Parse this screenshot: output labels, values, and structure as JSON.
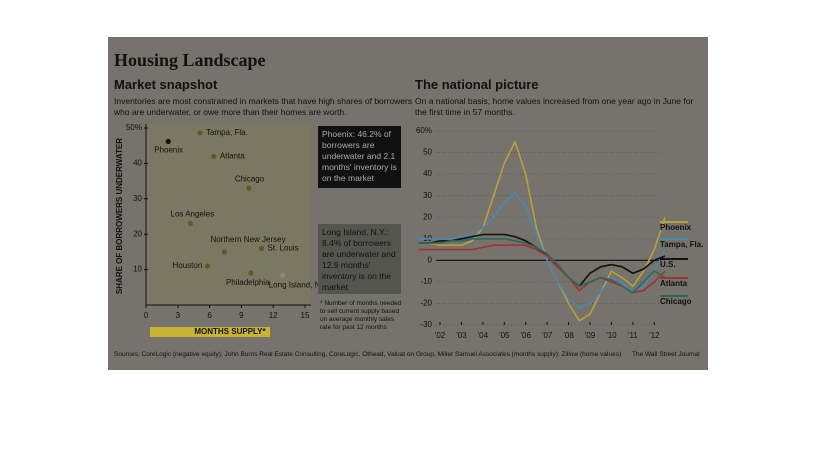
{
  "header": {
    "title": "Housing Landscape"
  },
  "chart_data": [
    {
      "type": "scatter",
      "title": "Market snapshot",
      "subtitle": "Inventories are most constrained in markets that have high shares of borrowers who are underwater, or owe more than their homes are worth.",
      "xlabel": "MONTHS SUPPLY*",
      "ylabel": "SHARE OF BORROWERS UNDERWATER",
      "labels": [
        "Phoenix",
        "Tampa, Fla.",
        "Atlanta",
        "Chicago",
        "Los Angeles",
        "Northern New Jersey",
        "St. Louis",
        "Houston",
        "Philadelphia",
        "Long Island, N.Y."
      ],
      "x": [
        2.1,
        5.1,
        6.4,
        9.7,
        4.2,
        7.4,
        10.9,
        5.8,
        9.9,
        12.9
      ],
      "values": [
        46.2,
        48.6,
        42,
        33,
        23,
        15,
        16,
        11,
        9,
        8.4
      ],
      "color": "#5e5a22",
      "xlim": [
        0,
        15
      ],
      "ylim": [
        0,
        50
      ],
      "xticks": [
        0,
        3,
        6,
        9,
        12,
        15
      ],
      "yticks": [
        {
          "value": 50,
          "label": "50%"
        },
        40,
        30,
        20,
        10
      ],
      "annotations": [
        "Phoenix: 46.2% of borrowers are underwater and 2.1 months' inventory is on the market",
        "Long Island, N.Y.: 8.4% of borrowers are underwater and 12.9 months' inventory is on the market"
      ],
      "note": "* Number of months needed to sell current supply based on average monthly sales rate for past 12 months"
    },
    {
      "type": "line",
      "title": "The national picture",
      "subtitle": "On a national basis, home values increased from one year ago in June for the first time in 57 months.",
      "x": [
        2001,
        2001.5,
        2002,
        2002.5,
        2003,
        2003.5,
        2004,
        2004.5,
        2005,
        2005.5,
        2006,
        2006.5,
        2007,
        2007.5,
        2008,
        2008.5,
        2009,
        2009.5,
        2010,
        2010.5,
        2011,
        2011.5,
        2012,
        2012.5
      ],
      "series": [
        {
          "name": "Phoenix",
          "color": "#b9a03c",
          "values": [
            8,
            8,
            7,
            7,
            7,
            9,
            15,
            30,
            45,
            55,
            40,
            15,
            0,
            -10,
            -20,
            -28,
            -25,
            -15,
            -5,
            -8,
            -12,
            -5,
            5,
            20
          ]
        },
        {
          "name": "Tampa, Fla.",
          "color": "#4d86b0",
          "values": [
            10,
            10,
            10,
            10,
            11,
            12,
            15,
            20,
            27,
            31,
            25,
            12,
            0,
            -10,
            -18,
            -22,
            -20,
            -15,
            -8,
            -10,
            -15,
            -12,
            -5,
            5
          ]
        },
        {
          "name": "U.S.",
          "color": "#111111",
          "values": [
            8,
            8,
            9,
            9,
            10,
            11,
            12,
            12,
            12,
            11,
            9,
            6,
            2,
            -3,
            -8,
            -12,
            -6,
            -3,
            -2,
            -3,
            -6,
            -4,
            0,
            2
          ]
        },
        {
          "name": "Atlanta",
          "color": "#a83030",
          "values": [
            5,
            5,
            5,
            5,
            5,
            5,
            6,
            7,
            7,
            7,
            7,
            5,
            2,
            -3,
            -8,
            -14,
            -10,
            -8,
            -10,
            -12,
            -15,
            -14,
            -10,
            -5
          ]
        },
        {
          "name": "Chicago",
          "color": "#2a6a5c",
          "values": [
            8,
            8,
            8,
            9,
            9,
            10,
            10,
            10,
            10,
            9,
            8,
            6,
            3,
            -2,
            -8,
            -12,
            -10,
            -8,
            -9,
            -12,
            -15,
            -10,
            -5,
            -8
          ]
        }
      ],
      "xlim": [
        2001,
        2012.5
      ],
      "ylim": [
        -30,
        60
      ],
      "xticks": [
        {
          "value": 2002,
          "label": "'02"
        },
        {
          "value": 2003,
          "label": "'03"
        },
        {
          "value": 2004,
          "label": "'04"
        },
        {
          "value": 2005,
          "label": "'05"
        },
        {
          "value": 2006,
          "label": "'06"
        },
        {
          "value": 2007,
          "label": "'07"
        },
        {
          "value": 2008,
          "label": "'08"
        },
        {
          "value": 2009,
          "label": "'09"
        },
        {
          "value": 2010,
          "label": "'10"
        },
        {
          "value": 2011,
          "label": "'11"
        },
        {
          "value": 2012,
          "label": "'12"
        }
      ],
      "yticks": [
        {
          "value": 60,
          "label": "60%"
        },
        50,
        40,
        30,
        20,
        10,
        0,
        -10,
        -20,
        -30
      ],
      "grid": true
    }
  ],
  "footer": {
    "source": "Sources: CoreLogic (negative equity); John Burns Real Estate Consulting, CoreLogic, Othead, Valuat on Group, Miller Samuel Associates (months supply); Zillow (home values)",
    "credit": "The Wall Street Journal"
  }
}
